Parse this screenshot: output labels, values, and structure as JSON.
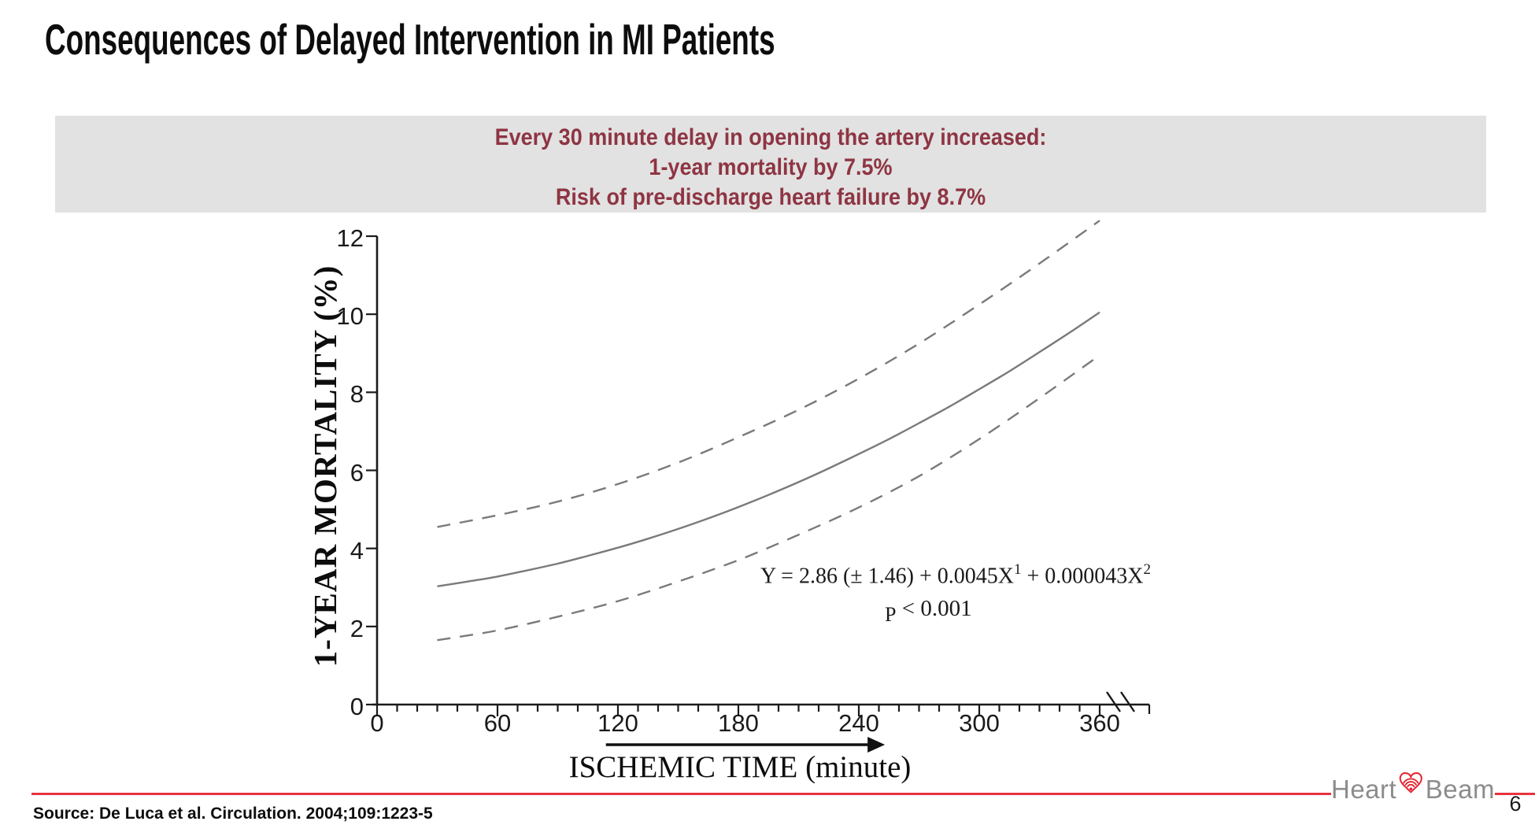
{
  "slide": {
    "title": "Consequences of Delayed Intervention in MI Patients"
  },
  "banner": {
    "bg_color": "#e2e2e2",
    "text_color": "#8e3543",
    "lines": [
      "Every 30 minute delay in opening the artery increased:",
      "1-year mortality by 7.5%",
      "Risk of pre-discharge heart failure by 8.7%"
    ]
  },
  "chart_data": {
    "type": "line",
    "title": "",
    "xlabel": "ISCHEMIC TIME (minute)",
    "ylabel": "1-YEAR MORTALITY (%)",
    "xlim": [
      0,
      390
    ],
    "ylim": [
      0,
      12
    ],
    "grid": false,
    "legend_position": "none",
    "x_tick_labels": [
      0,
      60,
      120,
      180,
      240,
      300,
      360
    ],
    "x_minor_tick_step_min": 10,
    "y_tick_labels": [
      0,
      2,
      4,
      6,
      8,
      10,
      12
    ],
    "axis_break_after_x_min": 360,
    "line_color": "#7a7a7a",
    "axis_color": "#1a1a1a",
    "series": [
      {
        "name": "mean",
        "style": "solid",
        "x_min": [
          30,
          45,
          60,
          75,
          90,
          105,
          120,
          135,
          150,
          165,
          180,
          195,
          210,
          225,
          240,
          255,
          270,
          285,
          300,
          315,
          330,
          345,
          360
        ],
        "y_pct": [
          3.03,
          3.15,
          3.28,
          3.44,
          3.61,
          3.81,
          4.02,
          4.25,
          4.5,
          4.77,
          5.06,
          5.37,
          5.7,
          6.05,
          6.42,
          6.8,
          7.21,
          7.63,
          8.08,
          8.54,
          9.03,
          9.53,
          10.05
        ]
      },
      {
        "name": "upper_ci",
        "style": "dashed",
        "x_min": [
          30,
          60,
          90,
          120,
          150,
          180,
          210,
          240,
          270,
          300,
          330,
          360
        ],
        "y_pct": [
          4.55,
          4.85,
          5.2,
          5.65,
          6.2,
          6.85,
          7.55,
          8.35,
          9.25,
          10.25,
          11.3,
          12.4
        ]
      },
      {
        "name": "lower_ci",
        "style": "dashed",
        "x_min": [
          30,
          60,
          90,
          120,
          150,
          180,
          210,
          240,
          270,
          300,
          330,
          360
        ],
        "y_pct": [
          1.65,
          1.9,
          2.25,
          2.65,
          3.15,
          3.7,
          4.35,
          5.05,
          5.85,
          6.8,
          7.85,
          8.95
        ]
      }
    ],
    "annotations": {
      "equation_base": "Y = 2.86 (± 1.46) + 0.0045X",
      "equation_sup1": "1",
      "equation_mid": " + 0.000043X",
      "equation_sup2": "2",
      "p_label": "P",
      "p_value": " < 0.001",
      "arrow": {
        "from_min": 114,
        "to_min": 253
      }
    }
  },
  "footer": {
    "source": "Source: De Luca et al. Circulation. 2004;109:1223-5",
    "page_number": "6",
    "rule_color": "#e8333e"
  },
  "logo": {
    "left_text": "Heart",
    "right_text": "Beam",
    "text_color": "#8c8c8c",
    "heart_color": "#e5232e"
  }
}
